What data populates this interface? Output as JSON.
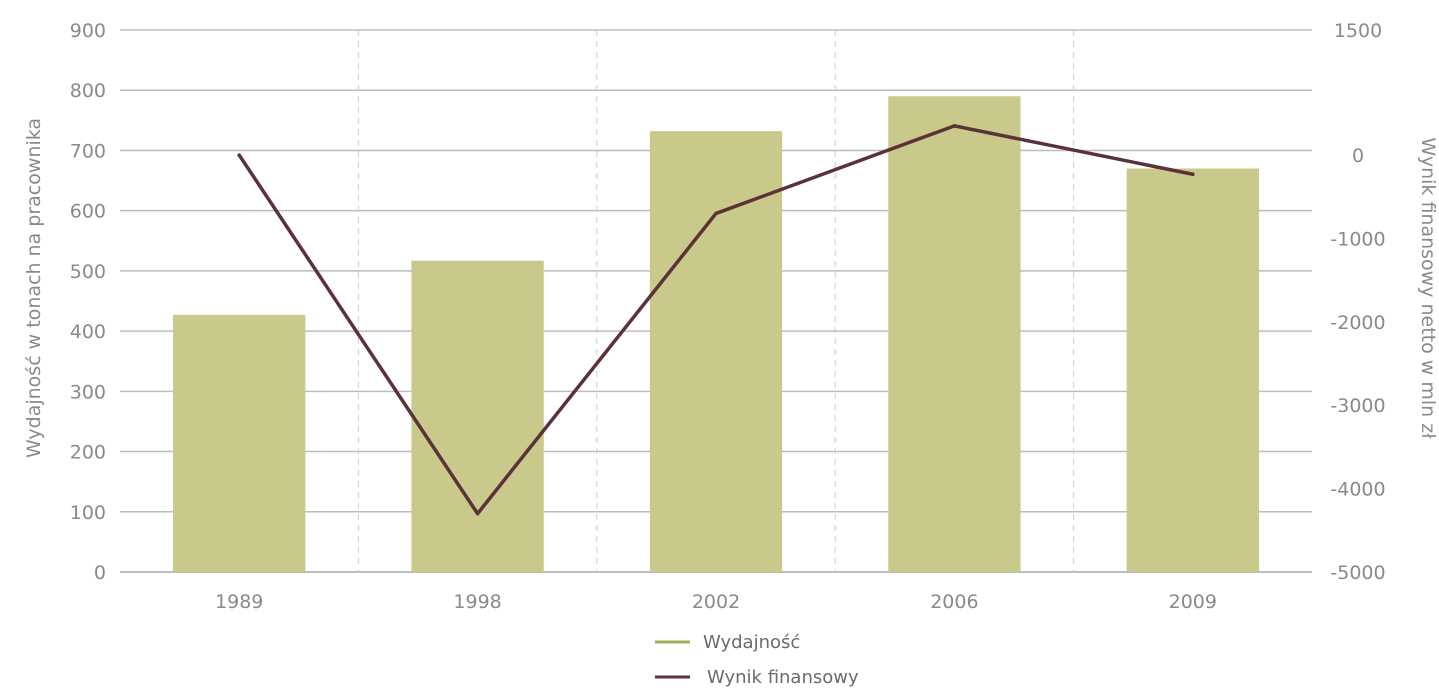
{
  "chart_data": {
    "type": "bar",
    "categories": [
      "1989",
      "1998",
      "2002",
      "2006",
      "2009"
    ],
    "series": [
      {
        "name": "Wydajność",
        "type": "bar",
        "axis": "left",
        "values": [
          427,
          517,
          732,
          790,
          670
        ]
      },
      {
        "name": "Wynik finansowy",
        "type": "line",
        "axis": "right",
        "values": [
          0,
          -4300,
          -700,
          350,
          -230
        ]
      }
    ],
    "ylabel": "Wydajność w tonach na pracownika",
    "y2label": "Wynik finansowy netto w mln zł",
    "ylim": [
      0,
      900
    ],
    "y2lim": [
      -5000,
      1500
    ],
    "yticks": [
      "0",
      "100",
      "200",
      "300",
      "400",
      "500",
      "600",
      "700",
      "800",
      "900"
    ],
    "y2ticks": [
      "-5000",
      "-4000",
      "-3000",
      "-2000",
      "-1000",
      "0",
      "1500"
    ],
    "grid": true,
    "legend": "bottom-center",
    "colors": {
      "bar": "#c8c98a",
      "line": "#5b3238",
      "grid": "#bdbdbd",
      "vgrid": "#d0d0d0"
    }
  }
}
